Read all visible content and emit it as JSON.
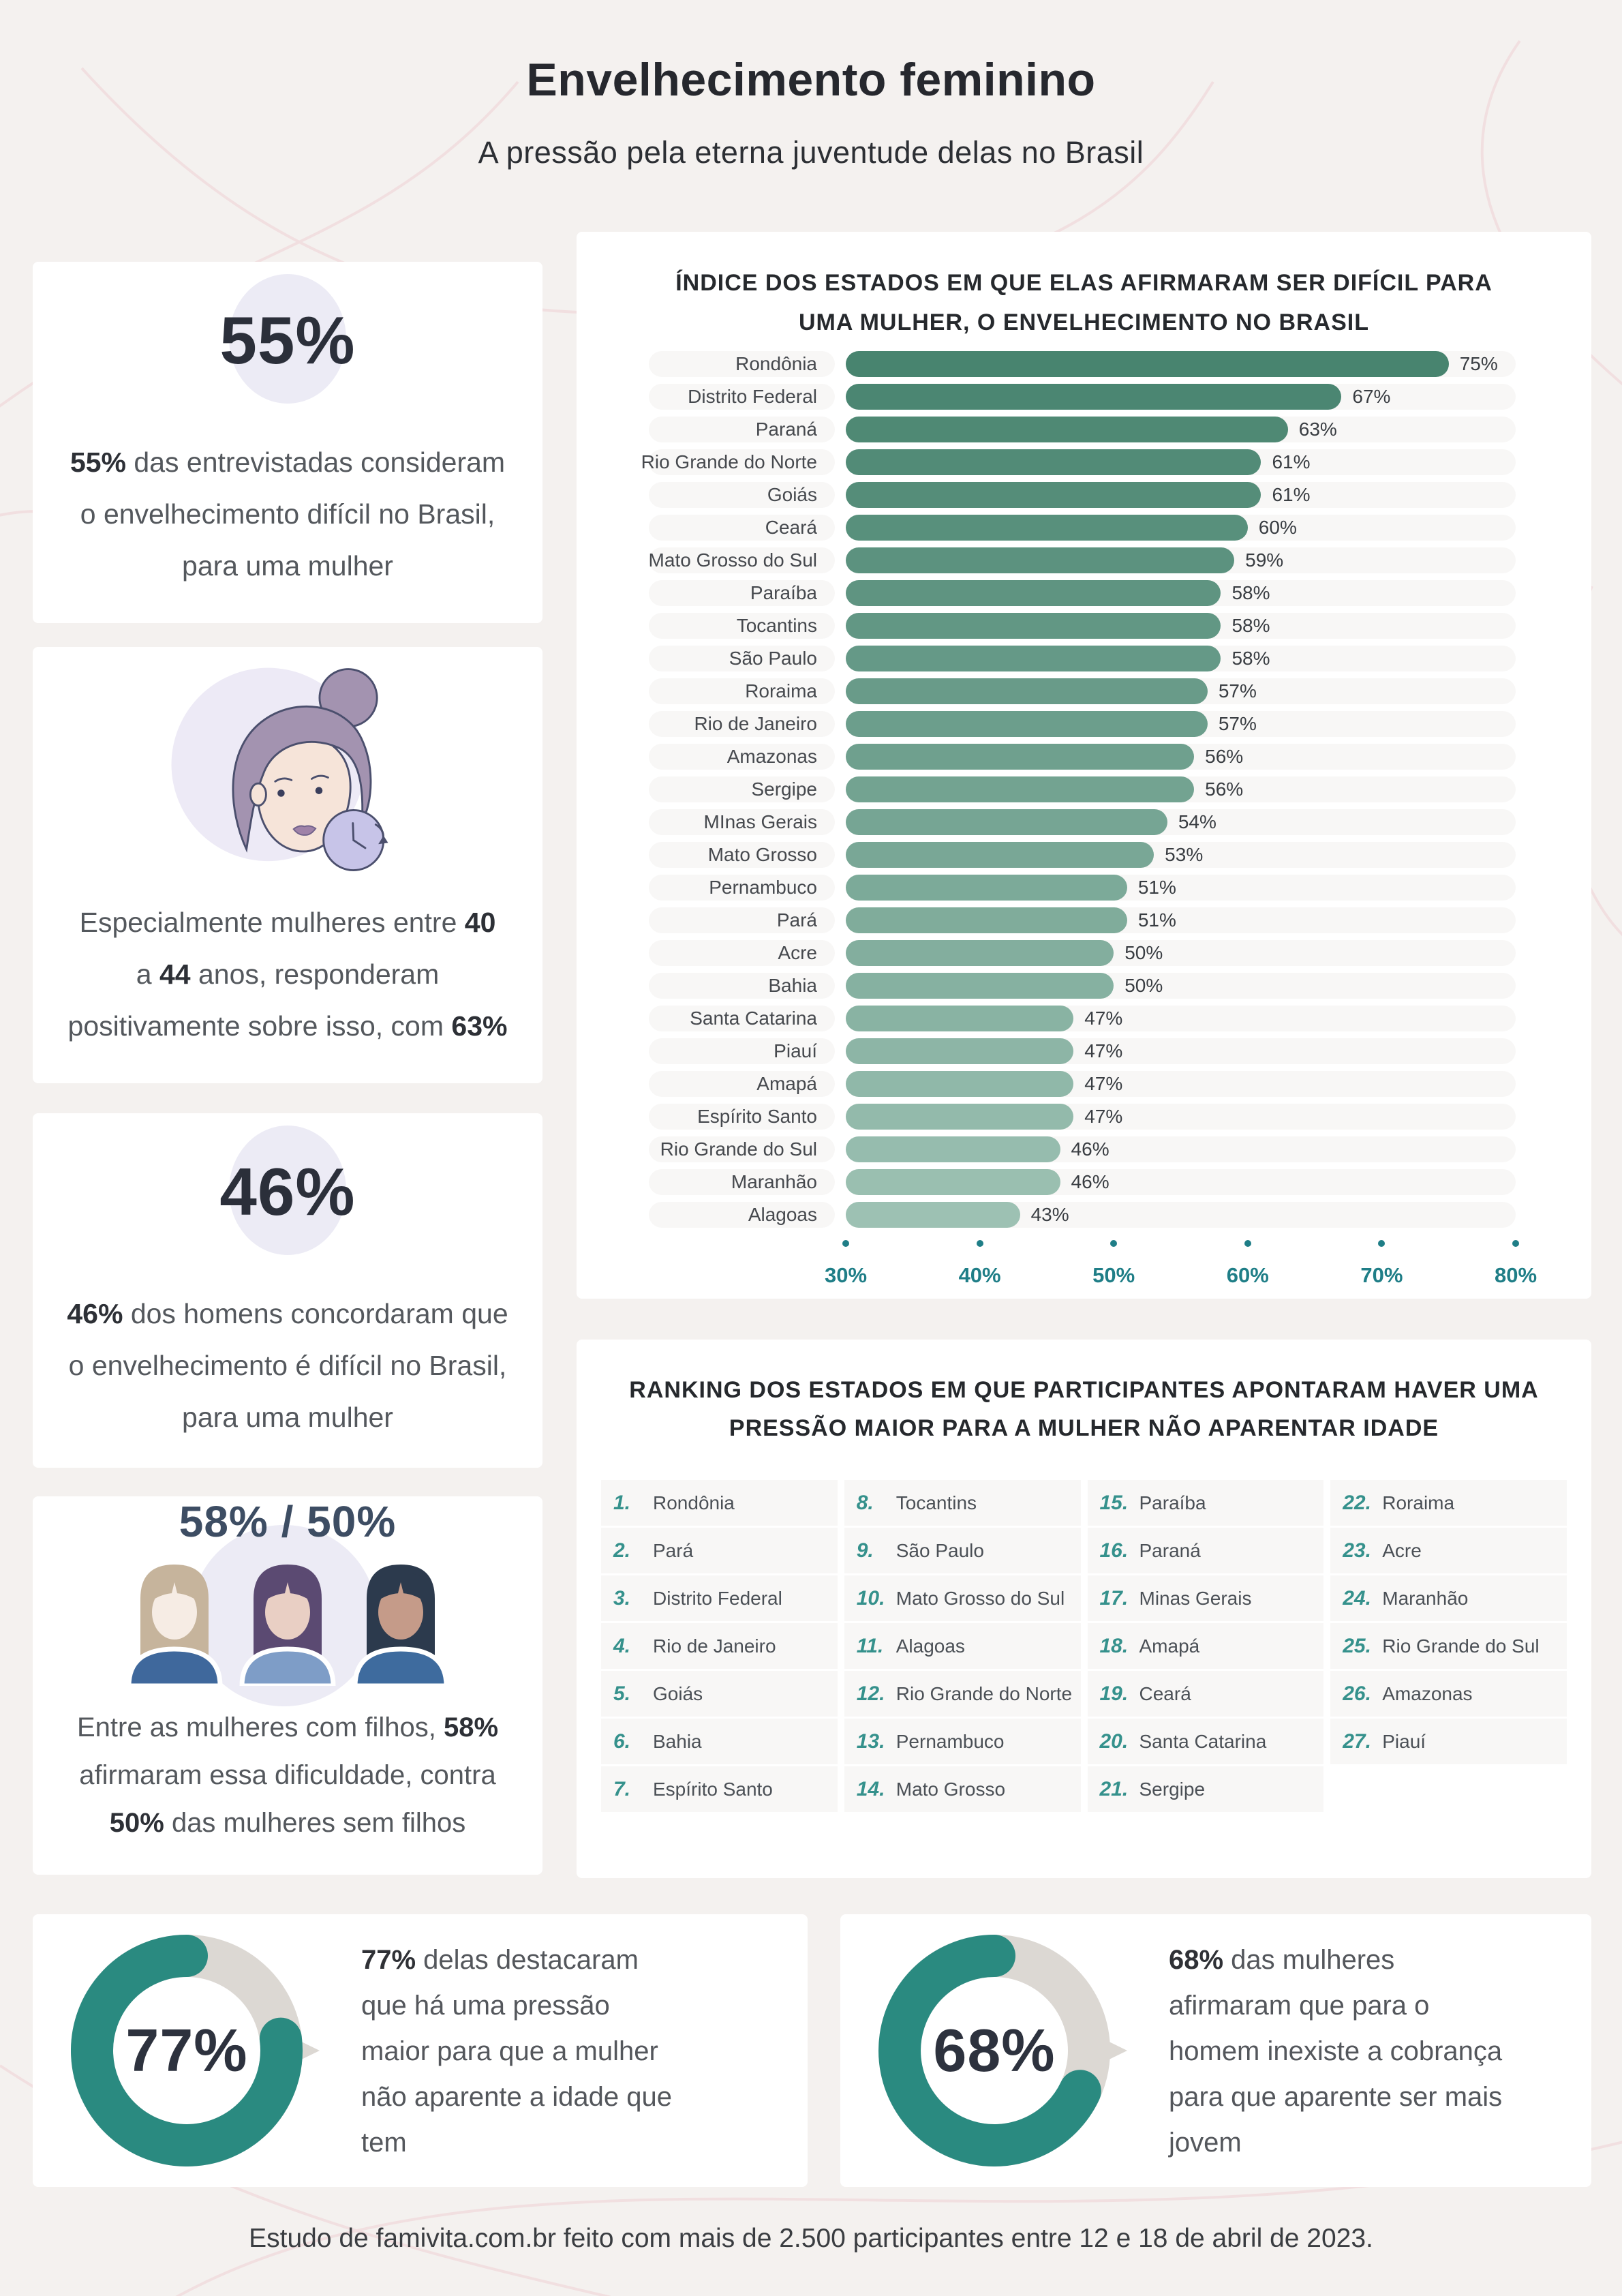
{
  "page": {
    "title": "Envelhecimento feminino",
    "subtitle": "A pressão pela eterna juventude delas no Brasil",
    "footer": "Estudo de famivita.com.br feito com mais de 2.500 participantes entre 12 e 18 de abril de 2023."
  },
  "colors": {
    "page_bg": "#f4f1ef",
    "card_bg": "#ffffff",
    "accent_teal": "#2a8a80",
    "axis_teal": "#1f7e87",
    "ranking_number_teal": "#35918c",
    "bar_gradient_top": "#48846f",
    "bar_gradient_bottom": "#9dc1b3",
    "track_bg": "#f8f7f6",
    "donut_track": "#dcd8d3",
    "big_number": "#2b2f3a",
    "dual_number": "#3d4d63",
    "lavender": "#ecebf5",
    "decor_line": "#f1dfe0"
  },
  "icons": {
    "women": [
      {
        "hair": "#c6b49c",
        "skin": "#f6ece4",
        "shirt": "#3f689c"
      },
      {
        "hair": "#5b4a72",
        "skin": "#e9cfc4",
        "shirt": "#7e9dc7"
      },
      {
        "hair": "#2c3a4d",
        "skin": "#c59b89",
        "shirt": "#3e6b9e"
      }
    ]
  },
  "stat_cards": [
    {
      "big": "55%",
      "lines": [
        [
          {
            "t": "55%",
            "b": true
          },
          {
            "t": " das entrevistadas consideram"
          }
        ],
        [
          {
            "t": "o envelhecimento difícil no Brasil,"
          }
        ],
        [
          {
            "t": "para uma mulher"
          }
        ]
      ]
    },
    {
      "illustration": "woman-with-clock",
      "lines": [
        [
          {
            "t": "Especialmente mulheres entre "
          },
          {
            "t": "40",
            "b": true
          }
        ],
        [
          {
            "t": "a "
          },
          {
            "t": "44",
            "b": true
          },
          {
            "t": " anos, responderam"
          }
        ],
        [
          {
            "t": "positivamente sobre isso, com "
          },
          {
            "t": "63%",
            "b": true
          }
        ]
      ]
    },
    {
      "big": "46%",
      "lines": [
        [
          {
            "t": "46%",
            "b": true
          },
          {
            "t": " dos homens concordaram que"
          }
        ],
        [
          {
            "t": "o envelhecimento é difícil no Brasil,"
          }
        ],
        [
          {
            "t": "para uma mulher"
          }
        ]
      ]
    },
    {
      "big": "58% / 50%",
      "illustration": "three-women",
      "lines": [
        [
          {
            "t": "Entre as mulheres com filhos, "
          },
          {
            "t": "58%",
            "b": true
          }
        ],
        [
          {
            "t": "afirmaram essa dificuldade, contra"
          }
        ],
        [
          {
            "t": "50%",
            "b": true
          },
          {
            "t": " das mulheres sem filhos"
          }
        ]
      ]
    }
  ],
  "chart_data": [
    {
      "type": "bar",
      "orientation": "horizontal",
      "title": "ÍNDICE DOS ESTADOS EM QUE ELAS AFIRMARAM SER DIFÍCIL PARA UMA MULHER, O ENVELHECIMENTO NO BRASIL",
      "unit": "%",
      "xlim": [
        30,
        80
      ],
      "ticks": [
        "30%",
        "40%",
        "50%",
        "60%",
        "70%",
        "80%"
      ],
      "grid": false,
      "categories": [
        "Rondônia",
        "Distrito Federal",
        "Paraná",
        "Rio Grande do Norte",
        "Goiás",
        "Ceará",
        "Mato Grosso do Sul",
        "Paraíba",
        "Tocantins",
        "São Paulo",
        "Roraima",
        "Rio de Janeiro",
        "Amazonas",
        "Sergipe",
        "MInas Gerais",
        "Mato Grosso",
        "Pernambuco",
        "Pará",
        "Acre",
        "Bahia",
        "Santa Catarina",
        "Piauí",
        "Amapá",
        "Espírito Santo",
        "Rio Grande do Sul",
        "Maranhão",
        "Alagoas"
      ],
      "values": [
        75,
        67,
        63,
        61,
        61,
        60,
        59,
        58,
        58,
        58,
        57,
        57,
        56,
        56,
        54,
        53,
        51,
        51,
        50,
        50,
        47,
        47,
        47,
        47,
        46,
        46,
        43
      ]
    },
    {
      "type": "donut",
      "value": 77,
      "center_label": "77%",
      "lines": [
        [
          {
            "t": "77%",
            "b": true
          },
          {
            "t": " delas destacaram"
          }
        ],
        [
          {
            "t": "que há uma pressão"
          }
        ],
        [
          {
            "t": "maior para que a mulher"
          }
        ],
        [
          {
            "t": "não aparente a idade que"
          }
        ],
        [
          {
            "t": "tem"
          }
        ]
      ]
    },
    {
      "type": "donut",
      "value": 68,
      "center_label": "68%",
      "lines": [
        [
          {
            "t": "68%",
            "b": true
          },
          {
            "t": " das mulheres"
          }
        ],
        [
          {
            "t": "afirmaram que para o"
          }
        ],
        [
          {
            "t": "homem inexiste a cobrança"
          }
        ],
        [
          {
            "t": "para que aparente ser mais"
          }
        ],
        [
          {
            "t": "jovem"
          }
        ]
      ]
    }
  ],
  "ranking": {
    "title": "RANKING DOS ESTADOS EM QUE PARTICIPANTES APONTARAM HAVER UMA PRESSÃO MAIOR PARA A MULHER NÃO APARENTAR IDADE",
    "columns": [
      [
        {
          "n": "1.",
          "name": "Rondônia"
        },
        {
          "n": "2.",
          "name": "Pará"
        },
        {
          "n": "3.",
          "name": "Distrito Federal"
        },
        {
          "n": "4.",
          "name": "Rio de Janeiro"
        },
        {
          "n": "5.",
          "name": "Goiás"
        },
        {
          "n": "6.",
          "name": "Bahia"
        },
        {
          "n": "7.",
          "name": "Espírito Santo"
        }
      ],
      [
        {
          "n": "8.",
          "name": "Tocantins"
        },
        {
          "n": "9.",
          "name": "São Paulo"
        },
        {
          "n": "10.",
          "name": "Mato Grosso do Sul"
        },
        {
          "n": "11.",
          "name": "Alagoas"
        },
        {
          "n": "12.",
          "name": "Rio Grande do Norte"
        },
        {
          "n": "13.",
          "name": "Pernambuco"
        },
        {
          "n": "14.",
          "name": "Mato Grosso"
        }
      ],
      [
        {
          "n": "15.",
          "name": "Paraíba"
        },
        {
          "n": "16.",
          "name": "Paraná"
        },
        {
          "n": "17.",
          "name": "Minas Gerais"
        },
        {
          "n": "18.",
          "name": "Amapá"
        },
        {
          "n": "19.",
          "name": "Ceará"
        },
        {
          "n": "20.",
          "name": "Santa Catarina"
        },
        {
          "n": "21.",
          "name": "Sergipe"
        }
      ],
      [
        {
          "n": "22.",
          "name": "Roraima"
        },
        {
          "n": "23.",
          "name": "Acre"
        },
        {
          "n": "24.",
          "name": "Maranhão"
        },
        {
          "n": "25.",
          "name": "Rio Grande do Sul"
        },
        {
          "n": "26.",
          "name": "Amazonas"
        },
        {
          "n": "27.",
          "name": "Piauí"
        }
      ]
    ]
  }
}
